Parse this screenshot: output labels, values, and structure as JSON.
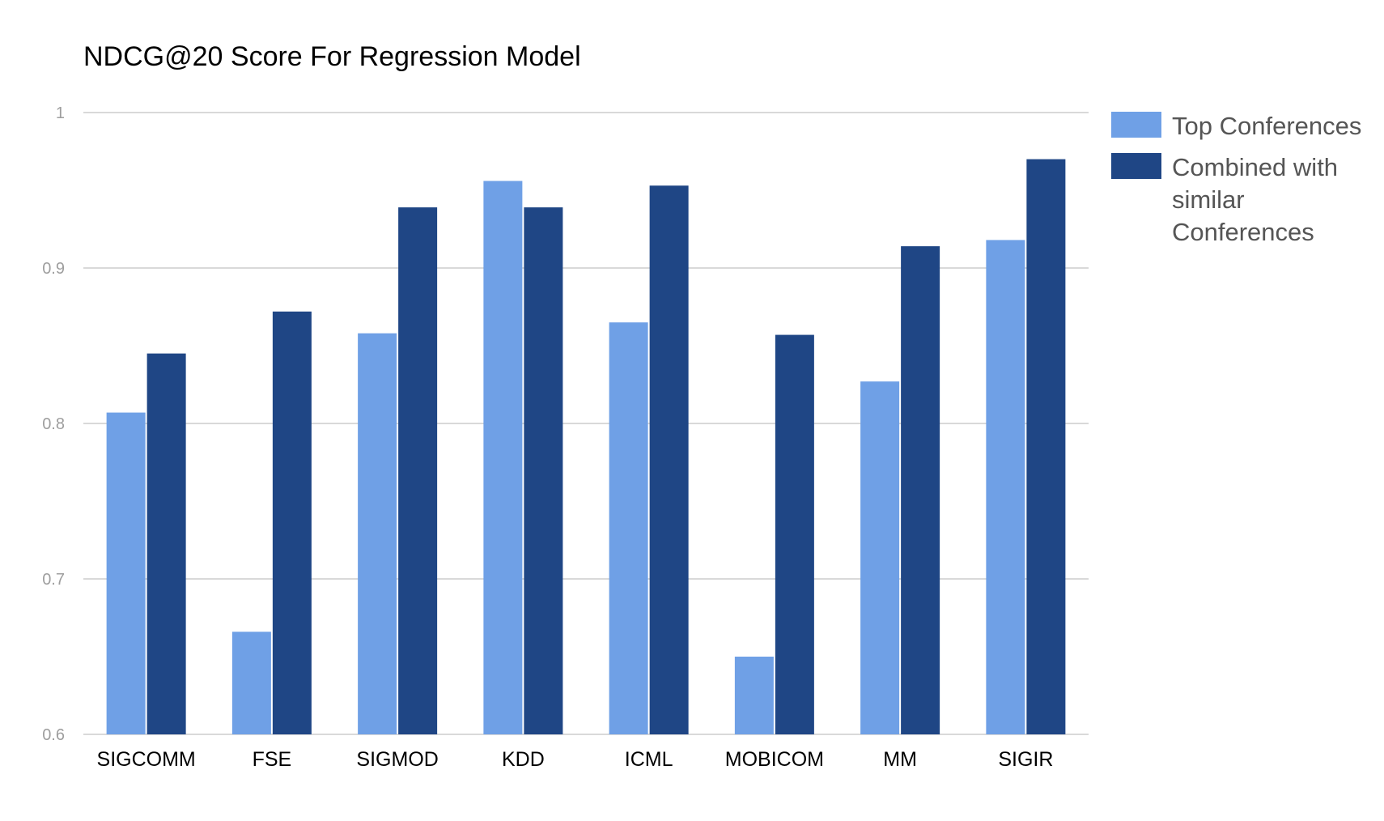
{
  "chart_data": {
    "type": "bar",
    "title": "NDCG@20 Score For Regression Model",
    "xlabel": "",
    "ylabel": "",
    "ylim": [
      0.6,
      1.0
    ],
    "yticks": [
      "0.6",
      "0.7",
      "0.8",
      "0.9",
      "1"
    ],
    "ytick_values": [
      0.6,
      0.7,
      0.8,
      0.9,
      1.0
    ],
    "grid": true,
    "legend_position": "right",
    "categories": [
      "SIGCOMM",
      "FSE",
      "SIGMOD",
      "KDD",
      "ICML",
      "MOBICOM",
      "MM",
      "SIGIR"
    ],
    "series": [
      {
        "name": "Top Conferences",
        "legend_lines": [
          "Top Conferences"
        ],
        "color": "#6fa0e6",
        "values": [
          0.807,
          0.666,
          0.858,
          0.956,
          0.865,
          0.65,
          0.827,
          0.918
        ]
      },
      {
        "name": "Combined with similar Conferences",
        "legend_lines": [
          "Combined with",
          "similar",
          "Conferences"
        ],
        "color": "#1f4685",
        "values": [
          0.845,
          0.872,
          0.939,
          0.939,
          0.953,
          0.857,
          0.914,
          0.97
        ]
      }
    ]
  }
}
